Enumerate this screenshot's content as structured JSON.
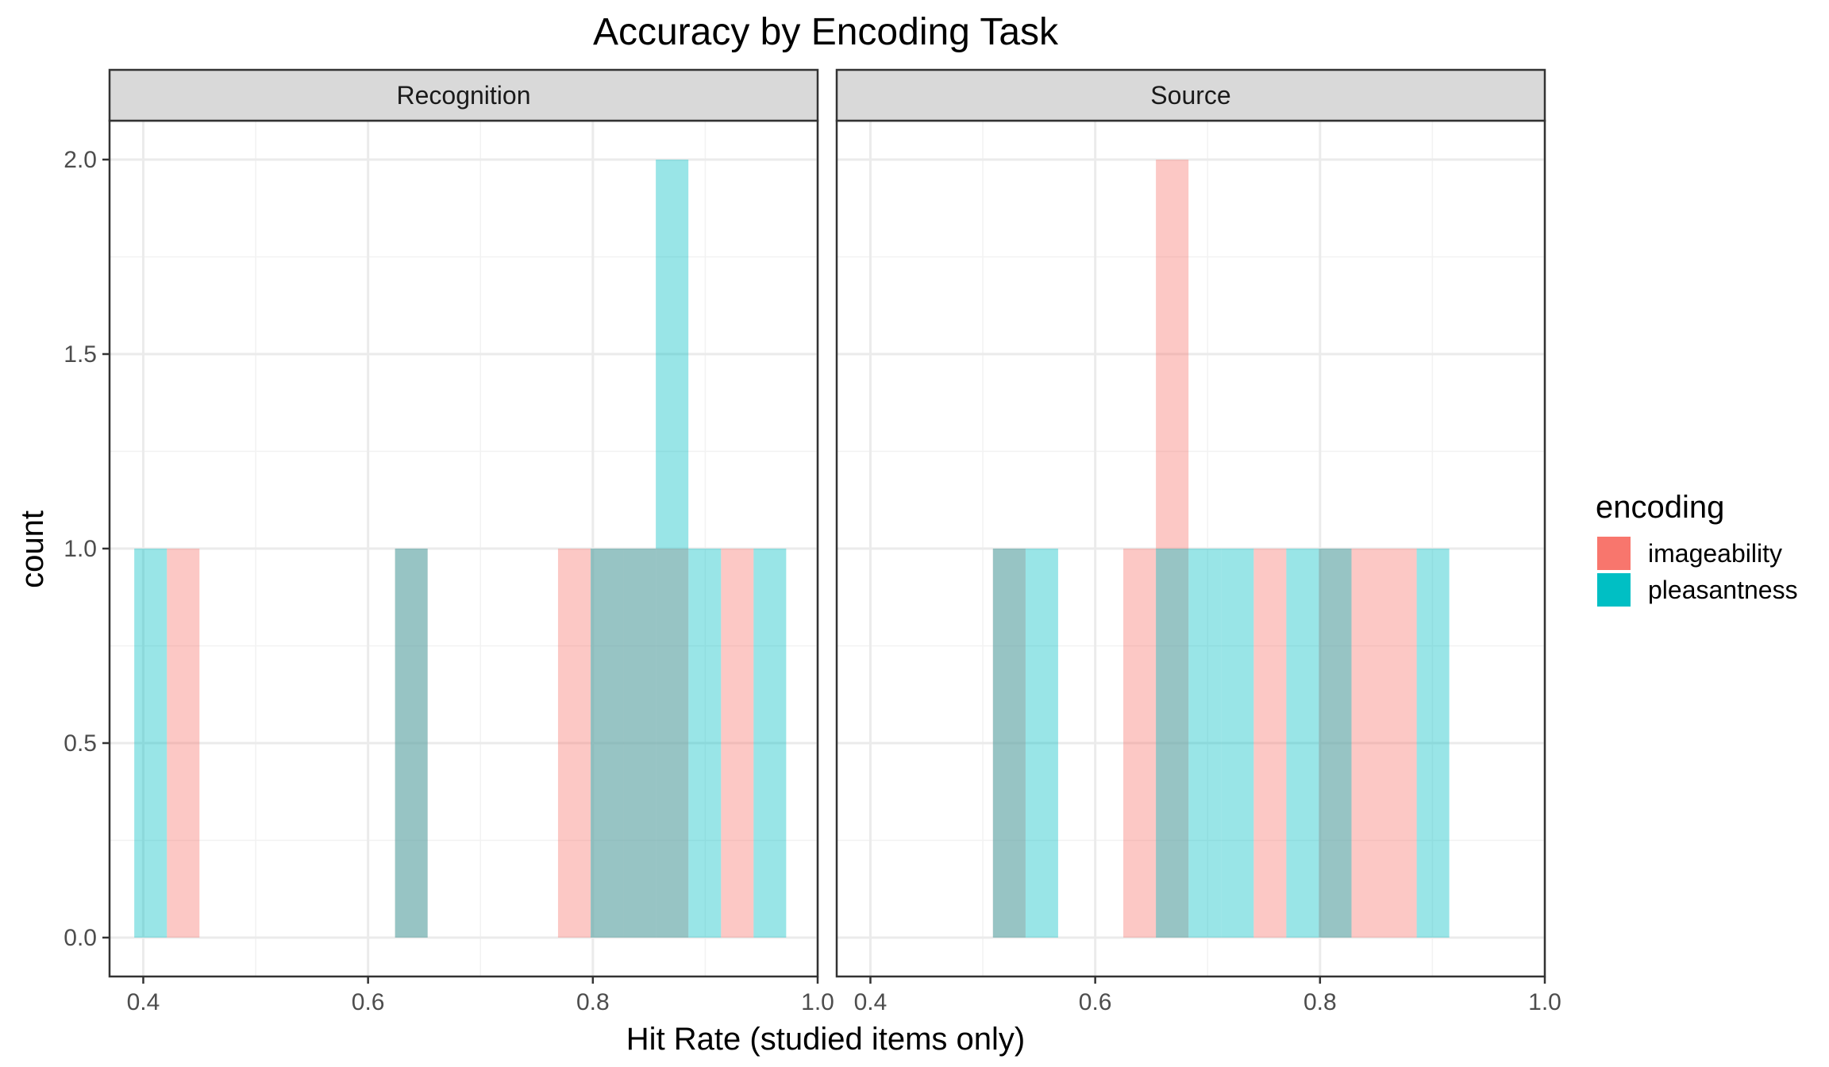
{
  "chart_data": {
    "type": "bar",
    "subtype": "histogram",
    "title": "Accuracy by Encoding Task",
    "xlabel": "Hit Rate (studied items only)",
    "ylabel": "count",
    "xlim": [
      0.37,
      1.0
    ],
    "ylim": [
      -0.1,
      2.1
    ],
    "x_ticks": [
      "0.4",
      "0.6",
      "0.8",
      "1.0"
    ],
    "y_ticks": [
      "0.0",
      "0.5",
      "1.0",
      "1.5",
      "2.0"
    ],
    "y_tick_values": [
      0,
      0.5,
      1,
      1.5,
      2
    ],
    "x_tick_values": [
      0.4,
      0.6,
      0.8,
      1.0
    ],
    "bin_width": 0.0289,
    "bar_opacity": 0.4,
    "grid": true,
    "legend": {
      "title": "encoding",
      "position": "right",
      "entries": [
        {
          "name": "imageability",
          "color": "#F8766D"
        },
        {
          "name": "pleasantness",
          "color": "#00BFC4"
        }
      ]
    },
    "facets": [
      {
        "label": "Recognition",
        "series": [
          {
            "name": "imageability",
            "color": "#F8766D",
            "bins": [
              {
                "x0": 0.421,
                "x1": 0.45,
                "count": 1
              },
              {
                "x0": 0.624,
                "x1": 0.653,
                "count": 1
              },
              {
                "x0": 0.769,
                "x1": 0.798,
                "count": 1
              },
              {
                "x0": 0.798,
                "x1": 0.827,
                "count": 1
              },
              {
                "x0": 0.827,
                "x1": 0.856,
                "count": 1
              },
              {
                "x0": 0.856,
                "x1": 0.885,
                "count": 1
              },
              {
                "x0": 0.914,
                "x1": 0.943,
                "count": 1
              }
            ]
          },
          {
            "name": "pleasantness",
            "color": "#00BFC4",
            "bins": [
              {
                "x0": 0.392,
                "x1": 0.421,
                "count": 1
              },
              {
                "x0": 0.624,
                "x1": 0.653,
                "count": 1
              },
              {
                "x0": 0.798,
                "x1": 0.827,
                "count": 1
              },
              {
                "x0": 0.827,
                "x1": 0.856,
                "count": 1
              },
              {
                "x0": 0.856,
                "x1": 0.885,
                "count": 2
              },
              {
                "x0": 0.885,
                "x1": 0.914,
                "count": 1
              },
              {
                "x0": 0.943,
                "x1": 0.972,
                "count": 1
              }
            ]
          }
        ]
      },
      {
        "label": "Source",
        "series": [
          {
            "name": "imageability",
            "color": "#F8766D",
            "bins": [
              {
                "x0": 0.509,
                "x1": 0.538,
                "count": 1
              },
              {
                "x0": 0.625,
                "x1": 0.654,
                "count": 1
              },
              {
                "x0": 0.654,
                "x1": 0.683,
                "count": 2
              },
              {
                "x0": 0.741,
                "x1": 0.77,
                "count": 1
              },
              {
                "x0": 0.799,
                "x1": 0.828,
                "count": 1
              },
              {
                "x0": 0.828,
                "x1": 0.857,
                "count": 1
              },
              {
                "x0": 0.857,
                "x1": 0.886,
                "count": 1
              }
            ]
          },
          {
            "name": "pleasantness",
            "color": "#00BFC4",
            "bins": [
              {
                "x0": 0.509,
                "x1": 0.538,
                "count": 1
              },
              {
                "x0": 0.538,
                "x1": 0.567,
                "count": 1
              },
              {
                "x0": 0.654,
                "x1": 0.683,
                "count": 1
              },
              {
                "x0": 0.683,
                "x1": 0.712,
                "count": 1
              },
              {
                "x0": 0.712,
                "x1": 0.741,
                "count": 1
              },
              {
                "x0": 0.77,
                "x1": 0.799,
                "count": 1
              },
              {
                "x0": 0.799,
                "x1": 0.828,
                "count": 1
              },
              {
                "x0": 0.886,
                "x1": 0.915,
                "count": 1
              }
            ]
          }
        ]
      }
    ]
  }
}
